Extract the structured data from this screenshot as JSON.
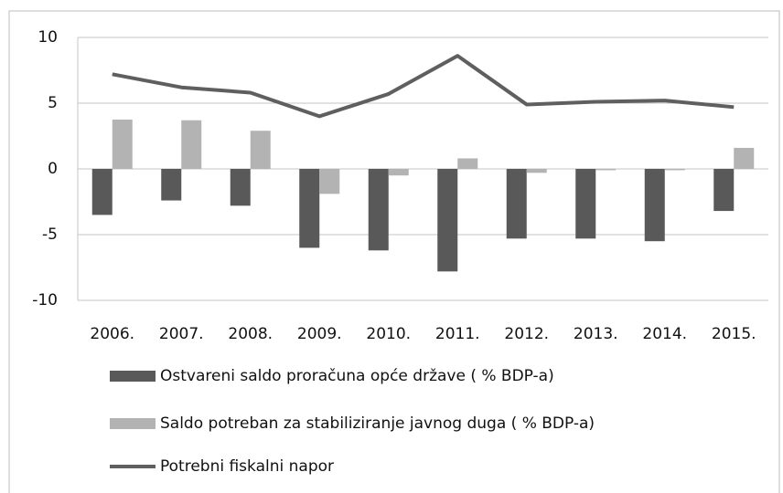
{
  "chart_data": {
    "type": "bar",
    "categories": [
      "2006.",
      "2007.",
      "2008.",
      "2009.",
      "2010.",
      "2011.",
      "2012.",
      "2013.",
      "2014.",
      "2015."
    ],
    "series": [
      {
        "name": "Ostvareni saldo proračuna opće države ( % BDP-a)",
        "color": "#595959",
        "values": [
          -3.5,
          -2.4,
          -2.8,
          -6.0,
          -6.2,
          -7.8,
          -5.3,
          -5.3,
          -5.5,
          -3.2
        ]
      },
      {
        "name": "Saldo potreban za stabiliziranje javnog duga ( % BDP-a)",
        "color": "#b3b3b3",
        "values": [
          3.75,
          3.7,
          2.9,
          -1.9,
          -0.5,
          0.8,
          -0.3,
          -0.1,
          -0.1,
          1.6
        ]
      },
      {
        "name": "Potrebni fiskalni napor",
        "color": "#5f5f5f",
        "type": "line",
        "values": [
          7.2,
          6.2,
          5.8,
          4.0,
          5.7,
          8.6,
          4.9,
          5.1,
          5.2,
          4.7
        ]
      }
    ],
    "ylim": [
      -10,
      10
    ],
    "yticks": [
      -10,
      -5,
      0,
      5,
      10
    ],
    "grid": true,
    "legend": "bottom"
  }
}
